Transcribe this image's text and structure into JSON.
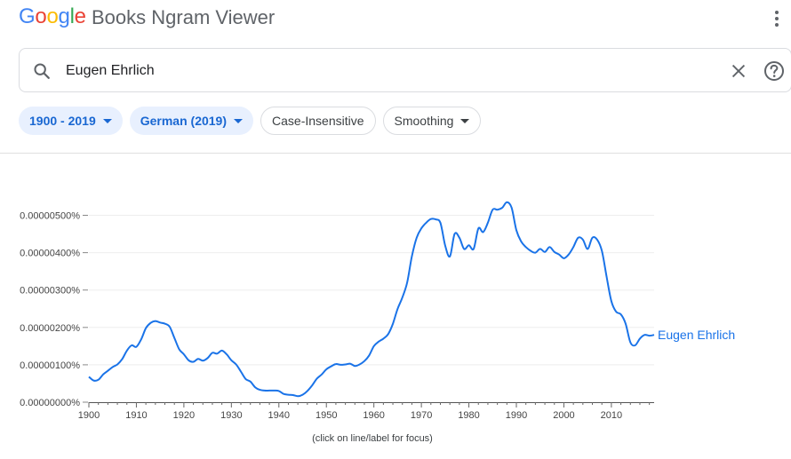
{
  "header": {
    "logo_letters": [
      "G",
      "o",
      "o",
      "g",
      "l",
      "e"
    ],
    "title": "Books Ngram Viewer",
    "menu_icon": "more-vert-icon"
  },
  "search": {
    "value": "Eugen Ehrlich",
    "placeholder": "",
    "search_icon": "search-icon",
    "clear_icon": "close-icon",
    "help_icon": "help-icon"
  },
  "filters": {
    "year_range": "1900 - 2019",
    "corpus": "German (2019)",
    "case": "Case-Insensitive",
    "smoothing": "Smoothing"
  },
  "colors": {
    "accent": "#1a73e8",
    "chip_active_bg": "#e8f0fe",
    "chip_active_text": "#1967d2",
    "line": "#1a73e8"
  },
  "hint": "(click on line/label for focus)",
  "chart_data": {
    "type": "line",
    "title": "",
    "xlabel": "",
    "ylabel": "",
    "xlim": [
      1900,
      2019
    ],
    "ylim": [
      0,
      5.5e-06
    ],
    "yticks": [
      0,
      1e-06,
      2e-06,
      3e-06,
      4e-06,
      5e-06
    ],
    "ytick_labels": [
      "0.00000000%",
      "0.00000100%",
      "0.00000200%",
      "0.00000300%",
      "0.00000400%",
      "0.00000500%"
    ],
    "xticks": [
      1900,
      1910,
      1920,
      1930,
      1940,
      1950,
      1960,
      1970,
      1980,
      1990,
      2000,
      2010
    ],
    "xtick_labels": [
      "1900",
      "1910",
      "1920",
      "1930",
      "1940",
      "1950",
      "1960",
      "1970",
      "1980",
      "1990",
      "2000",
      "2010"
    ],
    "grid": true,
    "legend": "end-of-line",
    "series": [
      {
        "name": "Eugen Ehrlich",
        "color": "#1a73e8",
        "x": [
          1900,
          1901,
          1902,
          1903,
          1904,
          1905,
          1906,
          1907,
          1908,
          1909,
          1910,
          1911,
          1912,
          1913,
          1914,
          1915,
          1916,
          1917,
          1918,
          1919,
          1920,
          1921,
          1922,
          1923,
          1924,
          1925,
          1926,
          1927,
          1928,
          1929,
          1930,
          1931,
          1932,
          1933,
          1934,
          1935,
          1936,
          1937,
          1938,
          1939,
          1940,
          1941,
          1942,
          1943,
          1944,
          1945,
          1946,
          1947,
          1948,
          1949,
          1950,
          1951,
          1952,
          1953,
          1954,
          1955,
          1956,
          1957,
          1958,
          1959,
          1960,
          1961,
          1962,
          1963,
          1964,
          1965,
          1966,
          1967,
          1968,
          1969,
          1970,
          1971,
          1972,
          1973,
          1974,
          1975,
          1976,
          1977,
          1978,
          1979,
          1980,
          1981,
          1982,
          1983,
          1984,
          1985,
          1986,
          1987,
          1988,
          1989,
          1990,
          1991,
          1992,
          1993,
          1994,
          1995,
          1996,
          1997,
          1998,
          1999,
          2000,
          2001,
          2002,
          2003,
          2004,
          2005,
          2006,
          2007,
          2008,
          2009,
          2010,
          2011,
          2012,
          2013,
          2014,
          2015,
          2016,
          2017,
          2018,
          2019
        ],
        "y": [
          6.8e-07,
          5.8e-07,
          6e-07,
          7.4e-07,
          8.4e-07,
          9.4e-07,
          1.01e-06,
          1.15e-06,
          1.38e-06,
          1.52e-06,
          1.48e-06,
          1.68e-06,
          1.98e-06,
          2.12e-06,
          2.17e-06,
          2.13e-06,
          2.1e-06,
          2.02e-06,
          1.72e-06,
          1.42e-06,
          1.28e-06,
          1.12e-06,
          1.08e-06,
          1.16e-06,
          1.11e-06,
          1.18e-06,
          1.32e-06,
          1.3e-06,
          1.38e-06,
          1.28e-06,
          1.12e-06,
          1.01e-06,
          8.2e-07,
          6.2e-07,
          5.5e-07,
          4e-07,
          3.3e-07,
          3.1e-07,
          3.1e-07,
          3.1e-07,
          3e-07,
          2.2e-07,
          2e-07,
          1.9e-07,
          1.6e-07,
          2e-07,
          3e-07,
          4.5e-07,
          6.3e-07,
          7.4e-07,
          8.8e-07,
          9.6e-07,
          1.02e-06,
          1e-06,
          1.01e-06,
          1.03e-06,
          9.7e-07,
          1.01e-06,
          1.1e-06,
          1.25e-06,
          1.5e-06,
          1.62e-06,
          1.7e-06,
          1.82e-06,
          2.1e-06,
          2.5e-06,
          2.8e-06,
          3.2e-06,
          3.9e-06,
          4.4e-06,
          4.65e-06,
          4.8e-06,
          4.9e-06,
          4.89e-06,
          4.8e-06,
          4.2e-06,
          3.9e-06,
          4.5e-06,
          4.4e-06,
          4.1e-06,
          4.2e-06,
          4.1e-06,
          4.65e-06,
          4.55e-06,
          4.8e-06,
          5.15e-06,
          5.15e-06,
          5.2e-06,
          5.35e-06,
          5.2e-06,
          4.6e-06,
          4.3e-06,
          4.15e-06,
          4.05e-06,
          4e-06,
          4.1e-06,
          4.02e-06,
          4.15e-06,
          4.02e-06,
          3.95e-06,
          3.85e-06,
          3.95e-06,
          4.15e-06,
          4.4e-06,
          4.35e-06,
          4.1e-06,
          4.4e-06,
          4.35e-06,
          4.05e-06,
          3.35e-06,
          2.7e-06,
          2.42e-06,
          2.35e-06,
          2.1e-06,
          1.6e-06,
          1.52e-06,
          1.7e-06,
          1.8e-06,
          1.78e-06,
          1.8e-06
        ]
      }
    ]
  }
}
